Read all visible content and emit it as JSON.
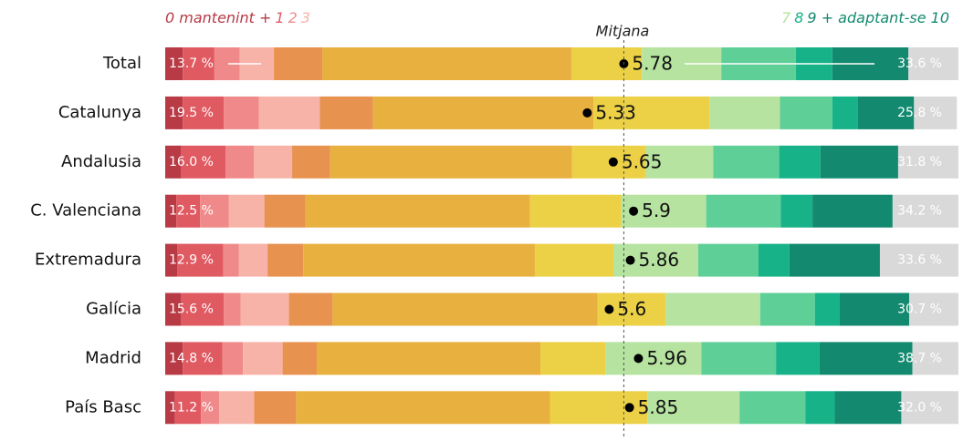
{
  "chart_data": {
    "type": "stacked-bar",
    "categories": [
      "Total",
      "Catalunya",
      "Andalusia",
      "C. Valenciana",
      "Extremadura",
      "Galícia",
      "Madrid",
      "País Basc"
    ],
    "xlim": [
      0,
      100
    ],
    "series": [
      {
        "color": "#b83a45",
        "values": [
          2.2,
          2.2,
          2.0,
          1.4,
          1.5,
          2.0,
          2.2,
          1.2
        ]
      },
      {
        "color": "#e05a62",
        "values": [
          4.0,
          5.2,
          5.6,
          3.0,
          5.8,
          5.4,
          5.0,
          3.3
        ]
      },
      {
        "color": "#f08a8a",
        "values": [
          3.2,
          4.4,
          3.6,
          3.6,
          2.0,
          2.1,
          2.6,
          2.3
        ]
      },
      {
        "color": "#f7b3a8",
        "values": [
          4.3,
          7.7,
          4.8,
          4.5,
          3.6,
          6.1,
          5.0,
          4.4
        ]
      },
      {
        "color": "#e8924f",
        "values": [
          6.1,
          6.7,
          4.8,
          5.2,
          4.5,
          5.5,
          4.3,
          5.3
        ]
      },
      {
        "color": "#e8b03f",
        "values": [
          31.4,
          27.8,
          30.5,
          28.3,
          29.2,
          33.4,
          28.2,
          32.0
        ]
      },
      {
        "color": "#ecd146",
        "values": [
          8.9,
          14.6,
          9.3,
          11.5,
          9.9,
          8.6,
          8.2,
          12.3
        ]
      },
      {
        "color": "#b6e3a0",
        "values": [
          10.0,
          8.9,
          8.5,
          10.7,
          10.7,
          11.9,
          12.1,
          11.6
        ]
      },
      {
        "color": "#5fcf98",
        "values": [
          9.4,
          6.6,
          8.3,
          9.4,
          7.6,
          6.9,
          9.4,
          8.3
        ]
      },
      {
        "color": "#17b287",
        "values": [
          4.6,
          3.2,
          5.2,
          4.0,
          3.9,
          3.1,
          5.5,
          3.7
        ]
      },
      {
        "color": "#138a70",
        "values": [
          9.6,
          7.1,
          9.8,
          10.1,
          11.4,
          8.8,
          11.7,
          8.4
        ]
      },
      {
        "color": "#d9d9d9",
        "values": [
          6.3,
          5.4,
          7.6,
          8.3,
          9.9,
          6.2,
          5.8,
          7.2
        ]
      }
    ],
    "low_share_labels": [
      "13.7 %",
      "19.5 %",
      "16.0 %",
      "12.5 %",
      "12.9 %",
      "15.6 %",
      "14.8 %",
      "11.2 %"
    ],
    "high_share_labels": [
      "33.6 %",
      "25.8 %",
      "31.8 %",
      "34.2 %",
      "33.6 %",
      "30.7 %",
      "38.7 %",
      "32.0 %"
    ],
    "means": [
      5.78,
      5.33,
      5.65,
      5.9,
      5.86,
      5.6,
      5.96,
      5.85
    ],
    "mean_label": "Mitjana",
    "legend_low": [
      "0 mantenint +",
      "1",
      "2",
      "3"
    ],
    "legend_high": [
      "7",
      "8",
      "9 + adaptant-se 10"
    ]
  }
}
